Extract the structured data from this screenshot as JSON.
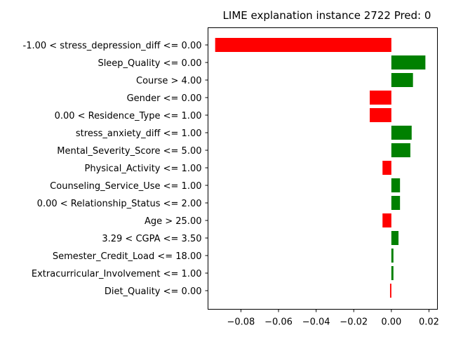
{
  "chart_data": {
    "type": "bar",
    "orientation": "horizontal",
    "title": "LIME explanation instance 2722 Pred: 0",
    "xlabel": "",
    "ylabel": "",
    "xlim": [
      -0.0975,
      0.0245
    ],
    "xticks": [
      -0.08,
      -0.06,
      -0.04,
      -0.02,
      0.0,
      0.02
    ],
    "xtick_labels": [
      "−0.08",
      "−0.06",
      "−0.04",
      "−0.02",
      "0.00",
      "0.02"
    ],
    "grid": false,
    "legend": "none",
    "colors": {
      "positive": "#008000",
      "negative": "#ff0000"
    },
    "categories": [
      "-1.00 < stress_depression_diff <= 0.00",
      "Sleep_Quality <= 0.00",
      "Course > 4.00",
      "Gender <= 0.00",
      "0.00 < Residence_Type <= 1.00",
      "stress_anxiety_diff <= 1.00",
      "Mental_Severity_Score <= 5.00",
      "Physical_Activity <= 1.00",
      "Counseling_Service_Use <= 1.00",
      "0.00 < Relationship_Status <= 2.00",
      "Age > 25.00",
      "3.29 < CGPA <= 3.50",
      "Semester_Credit_Load <= 18.00",
      "Extracurricular_Involvement <= 1.00",
      "Diet_Quality <= 0.00"
    ],
    "values": [
      -0.0937,
      0.0181,
      0.0115,
      -0.0115,
      -0.0115,
      0.0108,
      0.0101,
      -0.0047,
      0.0046,
      0.0046,
      -0.0047,
      0.0038,
      0.0011,
      0.0011,
      -0.0007
    ]
  }
}
